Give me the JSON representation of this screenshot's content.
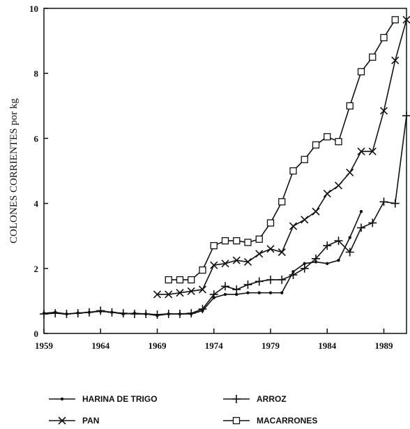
{
  "chart_data": {
    "type": "line",
    "y_label": "COLONES CORRIENTES por kg",
    "x": [
      1959,
      1960,
      1961,
      1962,
      1963,
      1964,
      1965,
      1966,
      1967,
      1968,
      1969,
      1970,
      1971,
      1972,
      1973,
      1974,
      1975,
      1976,
      1977,
      1978,
      1979,
      1980,
      1981,
      1982,
      1983,
      1984,
      1985,
      1986,
      1987,
      1988,
      1989,
      1990,
      1991
    ],
    "series": [
      {
        "name": "HARINA DE TRIGO",
        "color": "#111111",
        "marker": "dot",
        "values": [
          0.62,
          0.65,
          0.6,
          0.63,
          0.65,
          0.68,
          0.65,
          0.6,
          0.62,
          0.6,
          0.55,
          0.6,
          0.6,
          0.6,
          0.7,
          1.1,
          1.2,
          1.2,
          1.25,
          1.25,
          1.25,
          1.25,
          1.9,
          2.15,
          2.2,
          2.15,
          2.25,
          2.95,
          3.75,
          null,
          null,
          null,
          null
        ]
      },
      {
        "name": "ARROZ",
        "color": "#111111",
        "marker": "plus",
        "values": [
          0.6,
          0.62,
          0.6,
          0.62,
          0.65,
          0.7,
          0.65,
          0.62,
          0.6,
          0.6,
          0.58,
          0.6,
          0.6,
          0.62,
          0.75,
          1.2,
          1.45,
          1.35,
          1.5,
          1.6,
          1.65,
          1.65,
          1.8,
          2.0,
          2.3,
          2.7,
          2.85,
          2.5,
          3.25,
          3.4,
          4.05,
          4.0,
          6.7
        ]
      },
      {
        "name": "PAN",
        "color": "#111111",
        "marker": "cross",
        "values": [
          null,
          null,
          null,
          null,
          null,
          null,
          null,
          null,
          null,
          null,
          1.2,
          1.2,
          1.25,
          1.3,
          1.35,
          2.1,
          2.15,
          2.25,
          2.2,
          2.45,
          2.6,
          2.5,
          3.3,
          3.5,
          3.75,
          4.3,
          4.55,
          4.95,
          5.6,
          5.6,
          6.85,
          8.4,
          9.65
        ]
      },
      {
        "name": "MACARRONES",
        "color": "#111111",
        "marker": "square",
        "values": [
          null,
          null,
          null,
          null,
          null,
          null,
          null,
          null,
          null,
          null,
          null,
          1.65,
          1.65,
          1.65,
          1.95,
          2.7,
          2.85,
          2.85,
          2.8,
          2.9,
          3.4,
          4.05,
          5.0,
          5.35,
          5.8,
          6.05,
          5.9,
          7.0,
          8.05,
          8.5,
          9.1,
          9.65,
          null
        ]
      }
    ],
    "xlim": [
      1959,
      1991
    ],
    "xticks": [
      1959,
      1964,
      1969,
      1974,
      1979,
      1984,
      1989
    ],
    "ylim": [
      0,
      10
    ],
    "yticks": [
      0,
      2,
      4,
      6,
      8,
      10
    ]
  }
}
